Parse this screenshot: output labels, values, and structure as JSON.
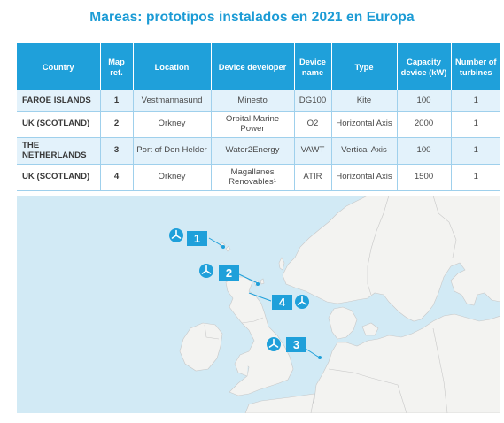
{
  "title": "Mareas: prototipos instalados en 2021 en Europa",
  "table": {
    "headers": {
      "country": "Country",
      "map_ref": "Map ref.",
      "location": "Location",
      "developer": "Device developer",
      "device_name": "Device name",
      "type": "Type",
      "capacity": "Capacity device (kW)",
      "turbines": "Number of turbines"
    },
    "rows": [
      {
        "country": "FAROE ISLANDS",
        "map_ref": "1",
        "location": "Vestmannasund",
        "developer": "Minesto",
        "device_name": "DG100",
        "type": "Kite",
        "capacity": "100",
        "turbines": "1"
      },
      {
        "country": "UK (SCOTLAND)",
        "map_ref": "2",
        "location": "Orkney",
        "developer": "Orbital Marine Power",
        "device_name": "O2",
        "type": "Horizontal Axis",
        "capacity": "2000",
        "turbines": "1"
      },
      {
        "country": "THE NETHERLANDS",
        "map_ref": "3",
        "location": "Port of Den Helder",
        "developer": "Water2Energy",
        "device_name": "VAWT",
        "type": "Vertical Axis",
        "capacity": "100",
        "turbines": "1"
      },
      {
        "country": "UK (SCOTLAND)",
        "map_ref": "4",
        "location": "Orkney",
        "developer": "Magallanes Renovables¹",
        "device_name": "ATIR",
        "type": "Horizontal Axis",
        "capacity": "1500",
        "turbines": "1"
      }
    ]
  },
  "map": {
    "markers": [
      {
        "label": "1",
        "icon": "turbine-icon"
      },
      {
        "label": "2",
        "icon": "turbine-icon"
      },
      {
        "label": "3",
        "icon": "turbine-icon"
      },
      {
        "label": "4",
        "icon": "turbine-icon"
      }
    ],
    "colors": {
      "sea": "#d2eaf5",
      "land": "#f3f3f1",
      "accent": "#1fa0da",
      "border": "#c8c8c8"
    }
  }
}
